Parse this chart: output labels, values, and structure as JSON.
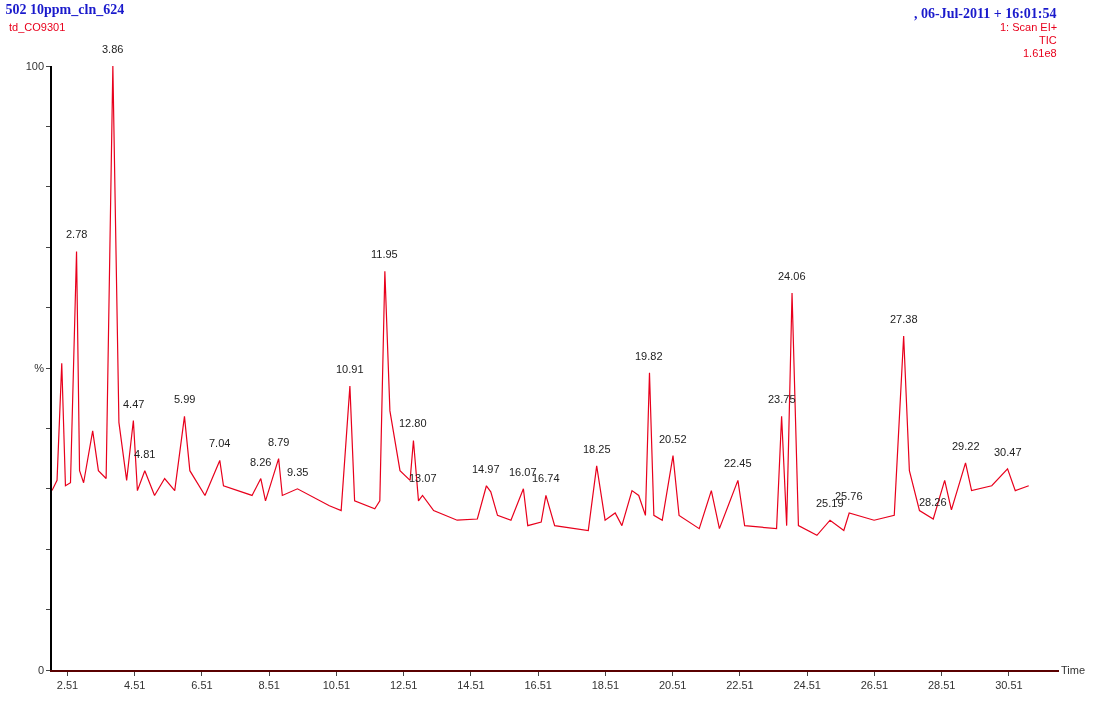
{
  "chart_data": {
    "type": "line",
    "title": "502 10ppm_cln_624",
    "subtitle": ", 06-Jul-2011 + 16:01:54",
    "xlabel": "Time",
    "x": [
      2.05,
      2.2,
      2.34,
      2.45,
      2.6,
      2.78,
      2.87,
      2.99,
      3.26,
      3.43,
      3.66,
      3.86,
      4.04,
      4.27,
      4.47,
      4.59,
      4.81,
      5.1,
      5.4,
      5.7,
      5.99,
      6.15,
      6.6,
      7.04,
      7.15,
      8.0,
      8.26,
      8.4,
      8.79,
      8.9,
      9.35,
      10.3,
      10.65,
      10.91,
      11.05,
      11.65,
      11.8,
      11.95,
      12.1,
      12.4,
      12.7,
      12.8,
      12.95,
      13.07,
      13.4,
      14.1,
      14.7,
      14.97,
      15.1,
      15.3,
      15.7,
      16.07,
      16.2,
      16.6,
      16.74,
      17.0,
      18.0,
      18.25,
      18.5,
      18.8,
      19.0,
      19.3,
      19.5,
      19.7,
      19.82,
      19.95,
      20.2,
      20.52,
      20.7,
      21.3,
      21.66,
      21.9,
      22.45,
      22.65,
      23.6,
      23.75,
      23.9,
      24.06,
      24.25,
      24.8,
      25.19,
      25.6,
      25.76,
      26.5,
      27.1,
      27.38,
      27.55,
      27.85,
      28.26,
      28.6,
      28.8,
      29.22,
      29.4,
      30.0,
      30.47,
      30.7,
      31.1
    ],
    "series": [
      {
        "color": "#e8001c",
        "values": [
          29.7,
          31.4,
          50.8,
          30.5,
          31,
          69.3,
          33,
          31,
          39.6,
          33,
          31.7,
          100,
          41,
          31.4,
          41.3,
          29.7,
          33,
          28.9,
          31.7,
          29.7,
          42,
          33,
          28.9,
          34.7,
          30.5,
          28.9,
          31.7,
          28,
          35,
          28.9,
          30,
          27.2,
          26.4,
          47,
          28,
          26.7,
          28,
          66,
          42.9,
          33,
          31.4,
          38,
          28,
          28.9,
          26.4,
          24.8,
          25,
          30.5,
          29.5,
          25.6,
          24.8,
          30,
          23.9,
          24.5,
          28.9,
          23.9,
          23.1,
          33.8,
          24.8,
          26,
          23.9,
          29.7,
          28.9,
          25.6,
          49.2,
          25.6,
          24.8,
          35.5,
          25.6,
          23.4,
          29.7,
          23.4,
          31.4,
          23.9,
          23.4,
          42,
          23.9,
          62.4,
          23.9,
          22.3,
          24.8,
          23.1,
          26,
          24.8,
          25.6,
          55.3,
          33,
          26.4,
          25,
          31.4,
          26.5,
          34.3,
          29.7,
          30.5,
          33.3,
          29.7,
          30.5
        ]
      }
    ],
    "xlim": [
      2.05,
      32.0
    ],
    "ylim": [
      0,
      100
    ],
    "xticks": [
      2.51,
      4.51,
      6.51,
      8.51,
      10.51,
      12.51,
      14.51,
      16.51,
      18.51,
      20.51,
      22.51,
      24.51,
      26.51,
      28.51,
      30.51
    ],
    "yticks": [
      0,
      {
        "value": 10,
        "label": null
      },
      {
        "value": 20,
        "label": null
      },
      {
        "value": 30,
        "label": null
      },
      {
        "value": 40,
        "label": null
      },
      {
        "value": 50,
        "label": "%"
      },
      {
        "value": 60,
        "label": null
      },
      {
        "value": 70,
        "label": null
      },
      {
        "value": 80,
        "label": null
      },
      {
        "value": 90,
        "label": null
      },
      100
    ],
    "marker": "none",
    "line_style": "solid",
    "annotations": [
      "td_CO9301",
      "1: Scan EI+",
      "TIC",
      "1.61e8",
      {
        "text": "2.78",
        "x": 2.78,
        "y": 69.3
      },
      {
        "text": "3.86",
        "x": 3.86,
        "y": 100
      },
      {
        "text": "4.47",
        "x": 4.47,
        "y": 41.3
      },
      {
        "text": "4.81",
        "x": 4.81,
        "y": 33
      },
      {
        "text": "5.99",
        "x": 5.99,
        "y": 42
      },
      {
        "text": "7.04",
        "x": 7.04,
        "y": 34.7
      },
      {
        "text": "8.26",
        "x": 8.26,
        "y": 31.7
      },
      {
        "text": "8.79",
        "x": 8.79,
        "y": 35
      },
      {
        "text": "9.35",
        "x": 9.35,
        "y": 30
      },
      {
        "text": "10.91",
        "x": 10.91,
        "y": 47
      },
      {
        "text": "11.95",
        "x": 11.95,
        "y": 66
      },
      {
        "text": "12.80",
        "x": 12.8,
        "y": 38
      },
      {
        "text": "13.07",
        "x": 13.07,
        "y": 28.9
      },
      {
        "text": "14.97",
        "x": 14.97,
        "y": 30.5
      },
      {
        "text": "16.07",
        "x": 16.07,
        "y": 30
      },
      {
        "text": "16.74",
        "x": 16.74,
        "y": 28.9
      },
      {
        "text": "18.25",
        "x": 18.25,
        "y": 33.8
      },
      {
        "text": "19.82",
        "x": 19.82,
        "y": 49.2
      },
      {
        "text": "20.52",
        "x": 20.52,
        "y": 35.5
      },
      {
        "text": "22.45",
        "x": 22.45,
        "y": 31.4
      },
      {
        "text": "23.75",
        "x": 23.75,
        "y": 42
      },
      {
        "text": "24.06",
        "x": 24.06,
        "y": 62.4
      },
      {
        "text": "25.19",
        "x": 25.19,
        "y": 24.8
      },
      {
        "text": "25.76",
        "x": 25.76,
        "y": 26
      },
      {
        "text": "27.38",
        "x": 27.38,
        "y": 55.3
      },
      {
        "text": "28.26",
        "x": 28.26,
        "y": 25
      },
      {
        "text": "29.22",
        "x": 29.22,
        "y": 34.3
      },
      {
        "text": "30.47",
        "x": 30.47,
        "y": 33.3
      }
    ]
  }
}
